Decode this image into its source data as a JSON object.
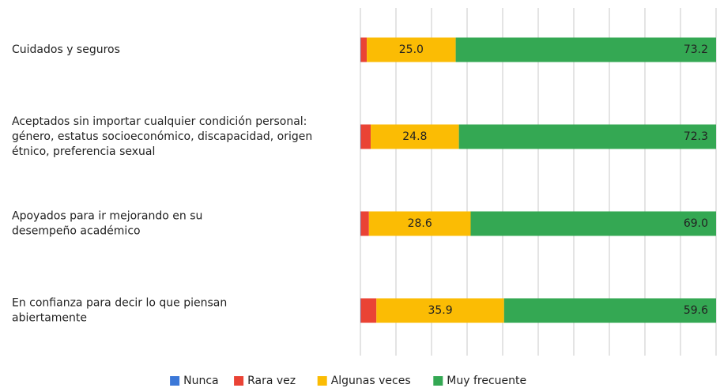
{
  "chart_data": {
    "type": "stacked_barh",
    "categories": [
      [
        "Cuidados y seguros"
      ],
      [
        "Aceptados sin importar cualquier condición personal:",
        "género, estatus socioeconómico, discapacidad, origen",
        "étnico, preferencia sexual"
      ],
      [
        "Apoyados para ir mejorando en su",
        "desempeño académico"
      ],
      [
        "En confianza para decir lo que piensan",
        "abiertamente"
      ]
    ],
    "series": [
      {
        "name": "Nunca",
        "color": "#3b78d8",
        "values": [
          0.1,
          0.1,
          0.1,
          0.1
        ]
      },
      {
        "name": "Rara vez",
        "color": "#ea4335",
        "values": [
          1.7,
          2.8,
          2.3,
          4.4
        ]
      },
      {
        "name": "Algunas veces",
        "color": "#fbbc04",
        "values": [
          25.0,
          24.8,
          28.6,
          35.9
        ],
        "value_labels": [
          "25.0",
          "24.8",
          "28.6",
          "35.9"
        ]
      },
      {
        "name": "Muy frecuente",
        "color": "#34a853",
        "values": [
          73.2,
          72.3,
          69.0,
          59.6
        ],
        "value_labels": [
          "73.2",
          "72.3",
          "69.0",
          "59.6"
        ]
      }
    ],
    "xlim": [
      0,
      100
    ],
    "xticks": [
      0,
      10,
      20,
      30,
      40,
      50,
      60,
      70,
      80,
      90,
      100
    ],
    "grid": true,
    "legend": "bottom"
  }
}
